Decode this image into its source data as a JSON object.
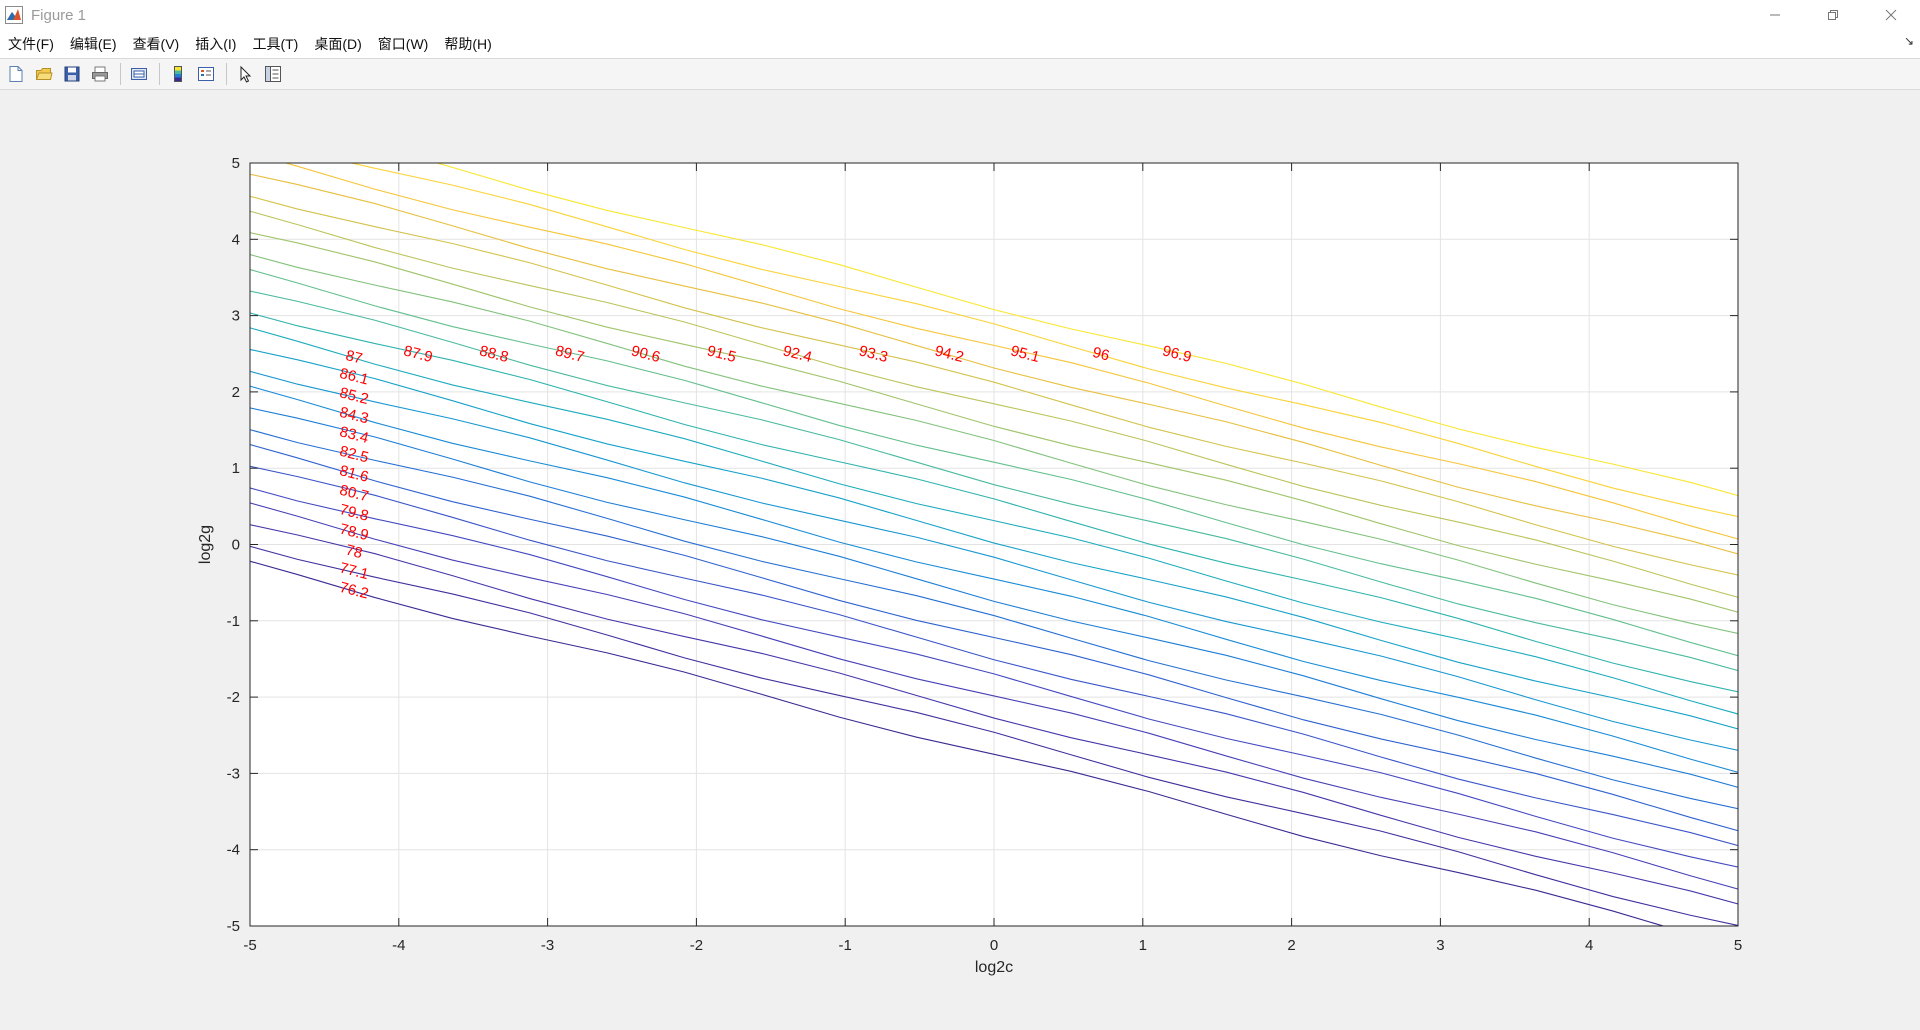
{
  "window": {
    "title": "Figure 1"
  },
  "menu": [
    "文件(F)",
    "编辑(E)",
    "查看(V)",
    "插入(I)",
    "工具(T)",
    "桌面(D)",
    "窗口(W)",
    "帮助(H)"
  ],
  "chart_data": {
    "type": "contour",
    "xlabel": "log2c",
    "ylabel": "log2g",
    "xlim": [
      -5,
      5
    ],
    "ylim": [
      -5,
      5
    ],
    "xticks": [
      -5,
      -4,
      -3,
      -2,
      -1,
      0,
      1,
      2,
      3,
      4,
      5
    ],
    "yticks": [
      -5,
      -4,
      -3,
      -2,
      -1,
      0,
      1,
      2,
      3,
      4,
      5
    ],
    "grid": true,
    "label_color": "#ff0000",
    "levels": [
      76.2,
      77.1,
      78,
      78.9,
      79.8,
      80.7,
      81.6,
      82.5,
      83.4,
      84.3,
      85.2,
      86.1,
      87,
      87.9,
      88.8,
      89.7,
      90.6,
      91.5,
      92.4,
      93.3,
      94.2,
      95.1,
      96,
      96.9
    ],
    "level_labels": [
      "76.2",
      "77.1",
      "78",
      "78.9",
      "79.8",
      "80.7",
      "81.6",
      "82.5",
      "83.4",
      "84.3",
      "85.2",
      "86.1",
      "87",
      "87.9",
      "88.8",
      "89.7",
      "90.6",
      "91.5",
      "92.4",
      "93.3",
      "94.2",
      "95.1",
      "96",
      "96.9"
    ],
    "level_colors": [
      "#3b2a93",
      "#40309e",
      "#4537aa",
      "#4840b6",
      "#4449c0",
      "#3a55c8",
      "#2f62cf",
      "#2670d3",
      "#1e7ed7",
      "#1a8bd6",
      "#1897d1",
      "#17a2c9",
      "#1dabbd",
      "#2fb3ae",
      "#4aba9e",
      "#63bf8e",
      "#82c27c",
      "#a0c46b",
      "#bcc45b",
      "#d4c24c",
      "#e8bf3f",
      "#f6c53a",
      "#fad338",
      "#f9e630"
    ],
    "labels_per_level": 1
  }
}
